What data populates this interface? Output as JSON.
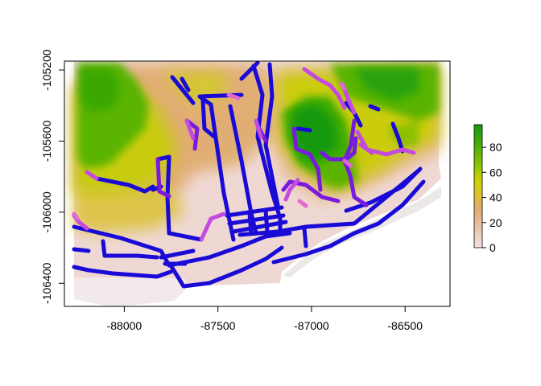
{
  "map": {
    "x_range": [
      -88320,
      -86260
    ],
    "y_range": [
      -106530,
      -105150
    ],
    "x_ticks": [
      {
        "value": -88000,
        "label": "-88000"
      },
      {
        "value": -87500,
        "label": "-87500"
      },
      {
        "value": -87000,
        "label": "-87000"
      },
      {
        "value": -86500,
        "label": "-86500"
      }
    ],
    "y_ticks": [
      {
        "value": -105200,
        "label": "-105200"
      },
      {
        "value": -105600,
        "label": "-105600"
      },
      {
        "value": -106000,
        "label": "-106000"
      },
      {
        "value": -106400,
        "label": "-106400"
      }
    ],
    "colors": {
      "low": "#f2e0de",
      "mid": "#e4b482",
      "midhigh": "#d2cc00",
      "high": "#44b200",
      "peak": "#16950c",
      "road_low": "#1a0ad6",
      "road_high": "#d458d8"
    }
  },
  "legend": {
    "ticks": [
      {
        "value": 80,
        "label": "80"
      },
      {
        "value": 60,
        "label": "60"
      },
      {
        "value": 40,
        "label": "40"
      },
      {
        "value": 20,
        "label": "20"
      },
      {
        "value": 0,
        "label": "0"
      }
    ],
    "range": [
      0,
      98
    ]
  }
}
